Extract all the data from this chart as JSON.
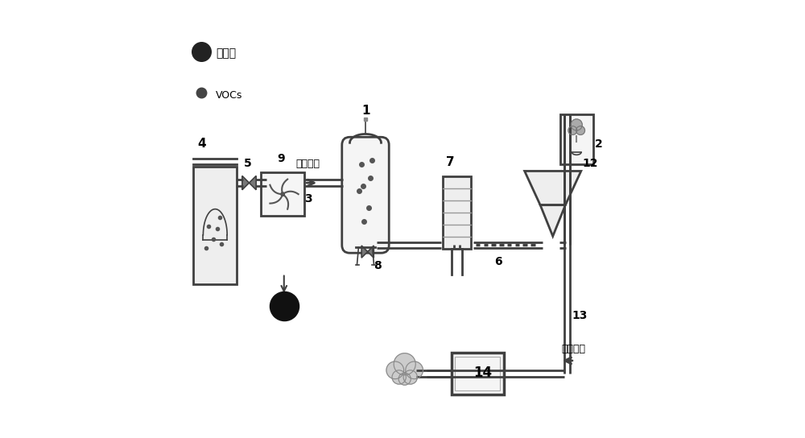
{
  "bg_color": "#ffffff",
  "line_color": "#404040",
  "line_width": 2.0,
  "legend_particle_label": "颗粒物",
  "legend_voc_label": "VOCs",
  "flow_text_1": "气流方向",
  "flow_text_2": "气流方向"
}
